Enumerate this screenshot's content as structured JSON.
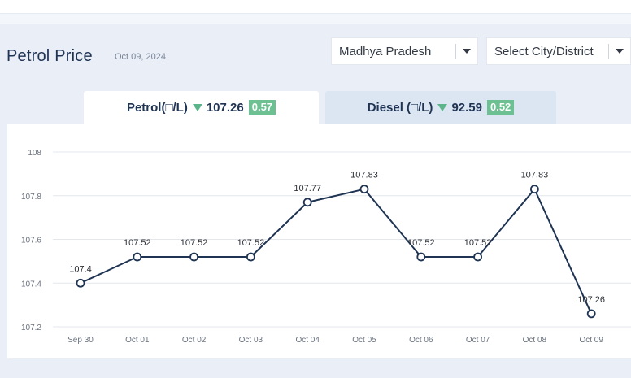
{
  "header": {
    "title": "Petrol Price",
    "date": "Oct 09, 2024"
  },
  "filters": {
    "state": {
      "value": "Madhya Pradesh"
    },
    "city": {
      "placeholder": "Select City/District"
    }
  },
  "tabs": [
    {
      "label": "Petrol(□/L)",
      "price": "107.26",
      "change": "0.57",
      "direction": "down",
      "active": true
    },
    {
      "label": "Diesel (□/L)",
      "price": "92.59",
      "change": "0.52",
      "direction": "down",
      "active": false
    }
  ],
  "colors": {
    "line": "#1f3353",
    "down_indicator": "#5cb58a",
    "badge": "#6cc091"
  },
  "chart_data": {
    "type": "line",
    "x": [
      "Sep 30",
      "Oct 01",
      "Oct 02",
      "Oct 03",
      "Oct 04",
      "Oct 05",
      "Oct 06",
      "Oct 07",
      "Oct 08",
      "Oct 09"
    ],
    "series": [
      {
        "values": [
          107.4,
          107.52,
          107.52,
          107.52,
          107.77,
          107.83,
          107.52,
          107.52,
          107.83,
          107.26
        ]
      }
    ],
    "data_labels": [
      "107.4",
      "107.52",
      "107.52",
      "107.52",
      "107.77",
      "107.83",
      "107.52",
      "107.52",
      "107.83",
      "107.26"
    ],
    "yticks": [
      "108",
      "107.8",
      "107.6",
      "107.4",
      "107.2"
    ],
    "ylim": [
      107.2,
      108
    ],
    "grid": true,
    "legend": "none"
  }
}
